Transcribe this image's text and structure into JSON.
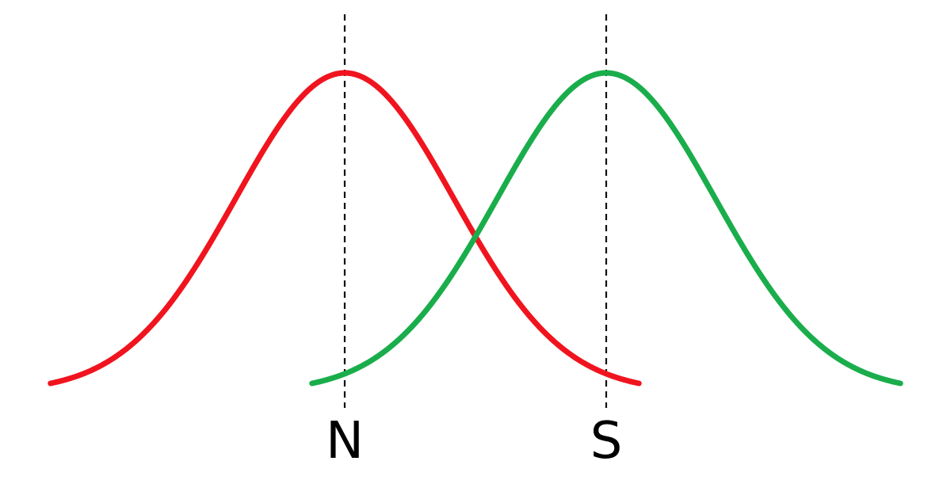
{
  "diagram": {
    "distributions": [
      {
        "id": "noise",
        "label": "N",
        "color": "#f0141e",
        "mean": 0,
        "sd": 1
      },
      {
        "id": "signal",
        "label": "S",
        "color": "#1aad4b",
        "mean": 2.4,
        "sd": 1
      }
    ],
    "mean_lines": {
      "style": "dashed",
      "color": "#111111"
    }
  }
}
